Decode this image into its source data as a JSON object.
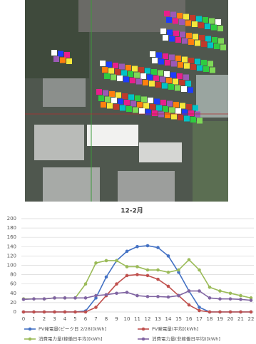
{
  "chart_data": {
    "type": "line",
    "title": "12-2月",
    "categories": [
      "0",
      "1",
      "2",
      "3",
      "4",
      "5",
      "6",
      "7",
      "8",
      "9",
      "10",
      "11",
      "12",
      "13",
      "14",
      "15",
      "16",
      "17",
      "18",
      "19",
      "20",
      "21",
      "22"
    ],
    "ylim": [
      0,
      200
    ],
    "yticks": [
      0,
      20,
      40,
      60,
      80,
      100,
      120,
      140,
      160,
      180,
      200
    ],
    "grid": true,
    "series": [
      {
        "name": "PV発電量(ピーク日 2/28)[kWh]",
        "color": "#4472c4",
        "values": [
          0,
          0,
          0,
          0,
          0,
          0,
          2,
          30,
          75,
          110,
          130,
          140,
          142,
          138,
          120,
          85,
          45,
          10,
          0,
          0,
          0,
          0,
          0
        ]
      },
      {
        "name": "PV発電量(平均)[kWh]",
        "color": "#c0504d",
        "values": [
          0,
          0,
          0,
          0,
          0,
          0,
          0,
          10,
          35,
          60,
          78,
          80,
          78,
          70,
          55,
          35,
          15,
          3,
          0,
          0,
          0,
          0,
          0
        ]
      },
      {
        "name": "消費電力量(稼働日平均)[kWh]",
        "color": "#9bbb59",
        "values": [
          28,
          28,
          28,
          30,
          30,
          30,
          60,
          105,
          110,
          110,
          97,
          97,
          90,
          90,
          85,
          90,
          112,
          90,
          53,
          45,
          40,
          35,
          30
        ]
      },
      {
        "name": "消費電力量(非稼働日平均)[kWh]",
        "color": "#8064a2",
        "values": [
          27,
          28,
          28,
          30,
          30,
          30,
          30,
          35,
          37,
          40,
          42,
          35,
          33,
          33,
          32,
          35,
          45,
          45,
          30,
          28,
          28,
          27,
          25
        ]
      }
    ]
  }
}
